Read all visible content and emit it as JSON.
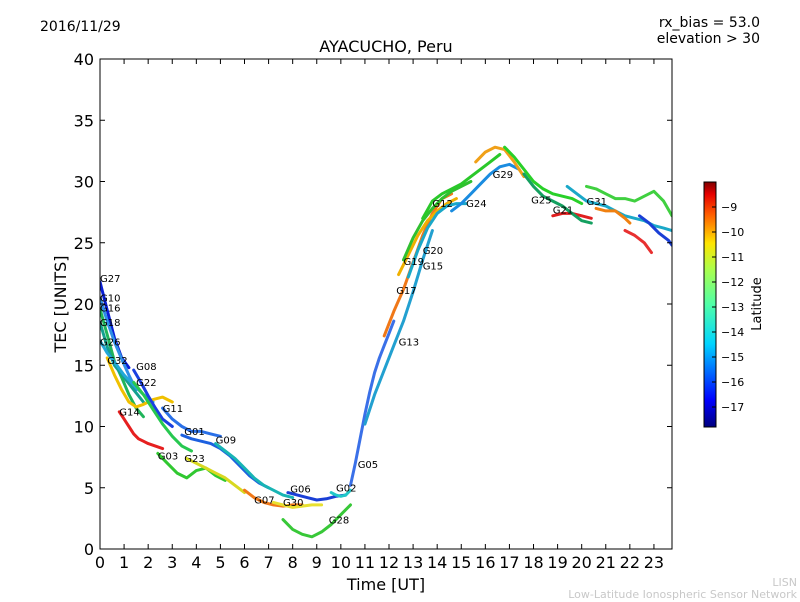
{
  "header": {
    "date": "2016/11/29",
    "rx_bias": "rx_bias = 53.0",
    "elevation": "elevation > 30"
  },
  "footer": {
    "line1": "LISN",
    "line2": "Low-Latitude Ionospheric Sensor Network"
  },
  "chart_data": {
    "type": "line",
    "title": "AYACUCHO, Peru",
    "xlabel": "Time [UT]",
    "ylabel": "TEC [UNITS]",
    "xlim": [
      0,
      23.75
    ],
    "ylim": [
      0,
      40
    ],
    "xticks": [
      "0",
      "1",
      "2",
      "3",
      "4",
      "5",
      "6",
      "7",
      "8",
      "9",
      "10",
      "11",
      "12",
      "13",
      "14",
      "15",
      "16",
      "17",
      "18",
      "19",
      "20",
      "21",
      "22",
      "23"
    ],
    "yticks": [
      "0",
      "5",
      "10",
      "15",
      "20",
      "25",
      "30",
      "35",
      "40"
    ],
    "grid": false,
    "colorbar": {
      "label": "Latitude",
      "range": [
        -17.8,
        -8.0
      ],
      "ticks": [
        "-9",
        "-10",
        "-11",
        "-12",
        "-13",
        "-14",
        "-15",
        "-16",
        "-17"
      ],
      "colormap": [
        "#00007f",
        "#0000ff",
        "#007fff",
        "#00ffff",
        "#7fff7f",
        "#ffff00",
        "#ff7f00",
        "#ff0000",
        "#7f0000"
      ]
    },
    "series": [
      {
        "name": "G27",
        "color": "#0a1fd6",
        "x": [
          0.0,
          0.3,
          0.6,
          0.9,
          1.2
        ],
        "y": [
          21.8,
          19.5,
          17.2,
          15.6,
          14.8
        ]
      },
      {
        "name": "G10",
        "color": "#2f8fe6",
        "x": [
          0.0,
          0.3,
          0.6,
          0.9,
          1.2,
          1.5
        ],
        "y": [
          20.5,
          18.6,
          16.9,
          15.5,
          14.2,
          13.0
        ]
      },
      {
        "name": "G16",
        "color": "#20b45a",
        "x": [
          0.0,
          0.3,
          0.6,
          0.9,
          1.2,
          1.5,
          1.8
        ],
        "y": [
          19.6,
          17.5,
          15.3,
          14.0,
          12.6,
          11.5,
          10.8
        ]
      },
      {
        "name": "G18",
        "color": "#14a090",
        "x": [
          0.0,
          0.3,
          0.6,
          1.0,
          1.4,
          1.8
        ],
        "y": [
          18.5,
          16.5,
          15.0,
          14.0,
          13.0,
          12.0
        ]
      },
      {
        "name": "G26",
        "color": "#22a8d8",
        "x": [
          0.0,
          0.3,
          0.7,
          1.0,
          1.4,
          1.8,
          2.2
        ],
        "y": [
          17.0,
          16.0,
          15.0,
          14.2,
          13.4,
          12.6,
          12.0
        ]
      },
      {
        "name": "G32",
        "color": "#f0c000",
        "x": [
          0.3,
          0.6,
          0.9,
          1.2,
          1.5,
          1.8,
          2.2,
          2.6,
          3.0
        ],
        "y": [
          15.6,
          14.2,
          13.0,
          12.0,
          11.6,
          11.8,
          12.2,
          12.4,
          12.0
        ]
      },
      {
        "name": "G08",
        "color": "#1a40e0",
        "x": [
          1.4,
          1.7,
          2.0,
          2.3,
          2.6,
          3.0
        ],
        "y": [
          14.6,
          13.6,
          12.5,
          11.5,
          10.6,
          10.0
        ]
      },
      {
        "name": "G22",
        "color": "#27c850",
        "x": [
          1.4,
          1.8,
          2.2,
          2.6,
          3.0,
          3.4,
          3.8
        ],
        "y": [
          13.6,
          12.6,
          11.4,
          10.2,
          9.2,
          8.4,
          8.0
        ]
      },
      {
        "name": "G14",
        "color": "#e62020",
        "x": [
          0.8,
          1.0,
          1.2,
          1.4,
          1.6,
          1.8,
          2.0,
          2.3,
          2.6
        ],
        "y": [
          11.2,
          10.6,
          10.0,
          9.4,
          9.0,
          8.8,
          8.6,
          8.4,
          8.2
        ]
      },
      {
        "name": "G11",
        "color": "#2a70e8",
        "x": [
          2.6,
          3.0,
          3.4,
          3.8,
          4.2,
          4.6,
          5.0
        ],
        "y": [
          11.5,
          10.6,
          10.0,
          9.6,
          9.6,
          9.4,
          9.2
        ]
      },
      {
        "name": "G01",
        "color": "#1c60e0",
        "x": [
          3.4,
          3.8,
          4.2,
          4.6,
          5.0,
          5.4,
          5.8,
          6.2,
          6.6,
          7.0
        ],
        "y": [
          9.3,
          9.0,
          8.8,
          8.6,
          8.2,
          7.6,
          6.8,
          6.0,
          5.4,
          5.0
        ]
      },
      {
        "name": "G09",
        "color": "#18b4b4",
        "x": [
          4.8,
          5.2,
          5.6,
          6.0,
          6.4,
          6.8,
          7.2,
          7.6,
          8.0
        ],
        "y": [
          8.6,
          8.0,
          7.4,
          6.6,
          5.8,
          5.2,
          4.8,
          4.4,
          4.2
        ]
      },
      {
        "name": "G03",
        "color": "#30c830",
        "x": [
          2.4,
          2.8,
          3.2,
          3.6,
          4.0,
          4.4,
          4.8,
          5.2
        ],
        "y": [
          7.8,
          7.0,
          6.2,
          5.8,
          6.4,
          6.6,
          6.0,
          5.6
        ]
      },
      {
        "name": "G23",
        "color": "#d8d820",
        "x": [
          3.6,
          4.0,
          4.4,
          4.8,
          5.2,
          5.6,
          6.0
        ],
        "y": [
          7.4,
          7.0,
          6.6,
          6.2,
          5.8,
          5.2,
          4.6
        ]
      },
      {
        "name": "G07",
        "color": "#f07818",
        "x": [
          6.0,
          6.4,
          6.8,
          7.2,
          7.6,
          8.0,
          8.4
        ],
        "y": [
          4.8,
          4.2,
          3.8,
          3.6,
          3.5,
          3.6,
          3.6
        ]
      },
      {
        "name": "G30",
        "color": "#e8e030",
        "x": [
          7.2,
          7.6,
          8.0,
          8.4,
          8.8,
          9.2
        ],
        "y": [
          3.8,
          3.6,
          3.4,
          3.5,
          3.6,
          3.6
        ]
      },
      {
        "name": "G06",
        "color": "#1a3fd6",
        "x": [
          7.8,
          8.2,
          8.6,
          9.0,
          9.4,
          9.8,
          10.2
        ],
        "y": [
          4.6,
          4.4,
          4.2,
          4.0,
          4.1,
          4.3,
          4.4
        ]
      },
      {
        "name": "G02",
        "color": "#20c8c8",
        "x": [
          9.6,
          9.8,
          10.0,
          10.2,
          10.4
        ],
        "y": [
          4.6,
          4.4,
          4.3,
          4.4,
          4.8
        ]
      },
      {
        "name": "G28",
        "color": "#38c838",
        "x": [
          7.6,
          8.0,
          8.4,
          8.8,
          9.2,
          9.6,
          10.0,
          10.4
        ],
        "y": [
          2.4,
          1.6,
          1.2,
          1.0,
          1.4,
          2.0,
          2.8,
          3.6
        ]
      },
      {
        "name": "G05",
        "color": "#3a70e8",
        "x": [
          10.4,
          10.6,
          10.8,
          11.0,
          11.2,
          11.4,
          11.6,
          11.8,
          12.0,
          12.2
        ],
        "y": [
          5.2,
          7.0,
          9.0,
          11.0,
          12.8,
          14.4,
          15.6,
          16.6,
          17.6,
          18.6
        ]
      },
      {
        "name": "G13",
        "color": "#22a0d0",
        "x": [
          11.0,
          11.4,
          11.8,
          12.2,
          12.6,
          13.0,
          13.4,
          13.8
        ],
        "y": [
          10.2,
          12.6,
          14.6,
          16.6,
          18.6,
          21.0,
          23.6,
          26.0
        ]
      },
      {
        "name": "G17",
        "color": "#f07818",
        "x": [
          11.8,
          12.2,
          12.6,
          13.0,
          13.4,
          13.8,
          14.2,
          14.6
        ],
        "y": [
          17.4,
          19.4,
          21.2,
          23.4,
          25.6,
          27.4,
          28.6,
          29.0
        ]
      },
      {
        "name": "G19",
        "color": "#f0b000",
        "x": [
          12.4,
          12.8,
          13.2,
          13.6,
          14.0,
          14.4,
          14.8
        ],
        "y": [
          22.4,
          24.0,
          25.6,
          26.8,
          27.6,
          28.2,
          28.6
        ]
      },
      {
        "name": "G20",
        "color": "#30c030",
        "x": [
          12.6,
          13.0,
          13.4,
          13.8,
          14.2,
          14.6,
          15.0,
          15.4
        ],
        "y": [
          23.6,
          25.4,
          26.8,
          27.8,
          28.6,
          29.2,
          29.6,
          30.0
        ]
      },
      {
        "name": "G15",
        "color": "#1aa8c8",
        "x": [
          12.8,
          13.2,
          13.6,
          14.0,
          14.4,
          14.8,
          15.2
        ],
        "y": [
          22.2,
          24.4,
          26.2,
          27.4,
          28.0,
          28.2,
          28.2
        ]
      },
      {
        "name": "G12",
        "color": "#2ac82a",
        "x": [
          13.4,
          13.8,
          14.2,
          14.6,
          15.0,
          15.4,
          15.8,
          16.2,
          16.6
        ],
        "y": [
          27.0,
          28.4,
          29.0,
          29.4,
          29.8,
          30.4,
          31.0,
          31.6,
          32.2
        ]
      },
      {
        "name": "G24",
        "color": "#1a8ce0",
        "x": [
          14.6,
          15.0,
          15.4,
          15.8,
          16.2,
          16.6,
          17.0,
          17.4
        ],
        "y": [
          27.6,
          28.2,
          29.0,
          29.8,
          30.6,
          31.2,
          31.4,
          31.0
        ]
      },
      {
        "name": "G29",
        "color": "#f0a018",
        "x": [
          15.6,
          16.0,
          16.4,
          16.8,
          17.2,
          17.6
        ],
        "y": [
          31.6,
          32.4,
          32.8,
          32.6,
          31.6,
          30.4
        ]
      },
      {
        "name": "G25",
        "color": "#28d028",
        "x": [
          16.8,
          17.2,
          17.6,
          18.0,
          18.4,
          18.8,
          19.2,
          19.6,
          20.0
        ],
        "y": [
          32.8,
          32.0,
          31.0,
          30.0,
          29.4,
          29.0,
          28.8,
          28.6,
          28.2
        ]
      },
      {
        "name": "G21",
        "color": "#e02020",
        "x": [
          18.8,
          19.2,
          19.6,
          20.0,
          20.4
        ],
        "y": [
          27.2,
          27.4,
          27.4,
          27.2,
          27.0
        ]
      },
      {
        "name": "G31",
        "color": "#1aa8c8",
        "x": [
          19.4,
          19.8,
          20.2,
          20.6,
          21.0,
          21.4,
          21.8,
          22.2,
          22.6,
          23.0,
          23.4,
          23.75
        ],
        "y": [
          29.6,
          29.0,
          28.4,
          28.2,
          28.0,
          27.6,
          27.2,
          27.0,
          26.8,
          26.4,
          26.2,
          26.0
        ]
      },
      {
        "name": "",
        "color": "#40d040",
        "x": [
          20.2,
          20.6,
          21.0,
          21.4,
          21.8,
          22.2,
          22.6,
          23.0,
          23.4,
          23.75
        ],
        "y": [
          29.6,
          29.4,
          29.0,
          28.6,
          28.6,
          28.4,
          28.8,
          29.2,
          28.4,
          27.2
        ]
      },
      {
        "name": "",
        "color": "#e83030",
        "x": [
          21.8,
          22.2,
          22.6,
          22.9
        ],
        "y": [
          26.0,
          25.6,
          25.0,
          24.2
        ]
      },
      {
        "name": "",
        "color": "#f08010",
        "x": [
          20.6,
          21.0,
          21.4,
          21.8,
          22.0
        ],
        "y": [
          27.8,
          27.6,
          27.6,
          27.0,
          26.6
        ]
      },
      {
        "name": "",
        "color": "#1a3fd6",
        "x": [
          22.4,
          22.8,
          23.2,
          23.6,
          23.75
        ],
        "y": [
          27.2,
          26.6,
          25.8,
          25.2,
          24.8
        ]
      },
      {
        "name": "",
        "color": "#14a060",
        "x": [
          17.6,
          18.0,
          18.4,
          18.8,
          19.2,
          19.6,
          20.0,
          20.4
        ],
        "y": [
          30.6,
          29.6,
          28.8,
          28.4,
          28.0,
          27.4,
          26.8,
          26.6
        ]
      }
    ],
    "labels": [
      {
        "text": "G27",
        "x": 0.0,
        "y": 21.8
      },
      {
        "text": "G10",
        "x": 0.0,
        "y": 20.2
      },
      {
        "text": "G16",
        "x": 0.0,
        "y": 19.4
      },
      {
        "text": "G18",
        "x": 0.0,
        "y": 18.2
      },
      {
        "text": "G26",
        "x": 0.0,
        "y": 16.6
      },
      {
        "text": "G32",
        "x": 0.3,
        "y": 15.1
      },
      {
        "text": "G08",
        "x": 1.5,
        "y": 14.6
      },
      {
        "text": "G22",
        "x": 1.5,
        "y": 13.3
      },
      {
        "text": "G14",
        "x": 0.8,
        "y": 10.9
      },
      {
        "text": "G11",
        "x": 2.6,
        "y": 11.2
      },
      {
        "text": "G01",
        "x": 3.5,
        "y": 9.3
      },
      {
        "text": "G09",
        "x": 4.8,
        "y": 8.6
      },
      {
        "text": "G03",
        "x": 2.4,
        "y": 7.3
      },
      {
        "text": "G23",
        "x": 3.5,
        "y": 7.1
      },
      {
        "text": "G07",
        "x": 6.4,
        "y": 3.7
      },
      {
        "text": "G30",
        "x": 7.6,
        "y": 3.5
      },
      {
        "text": "G06",
        "x": 7.9,
        "y": 4.6
      },
      {
        "text": "G02",
        "x": 9.8,
        "y": 4.7
      },
      {
        "text": "G28",
        "x": 9.5,
        "y": 2.1
      },
      {
        "text": "G05",
        "x": 10.7,
        "y": 6.6
      },
      {
        "text": "G13",
        "x": 12.4,
        "y": 16.6
      },
      {
        "text": "G17",
        "x": 12.3,
        "y": 20.8
      },
      {
        "text": "G19",
        "x": 12.6,
        "y": 23.2
      },
      {
        "text": "G20",
        "x": 13.4,
        "y": 24.1
      },
      {
        "text": "G15",
        "x": 13.4,
        "y": 22.8
      },
      {
        "text": "G12",
        "x": 13.8,
        "y": 27.9
      },
      {
        "text": "G24",
        "x": 15.2,
        "y": 27.9
      },
      {
        "text": "G29",
        "x": 16.3,
        "y": 30.3
      },
      {
        "text": "G25",
        "x": 17.9,
        "y": 28.2
      },
      {
        "text": "G21",
        "x": 18.8,
        "y": 27.4
      },
      {
        "text": "G31",
        "x": 20.2,
        "y": 28.1
      }
    ]
  }
}
